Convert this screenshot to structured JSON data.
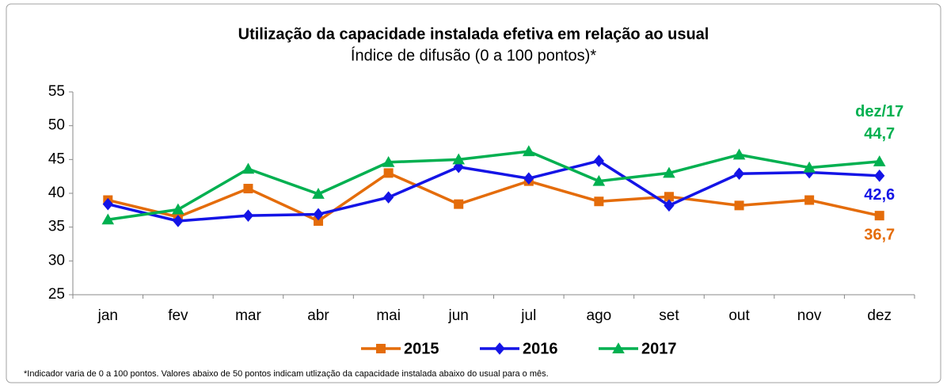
{
  "chart_data": {
    "type": "line",
    "title": "Utilização da capacidade instalada efetiva em relação ao usual",
    "subtitle": "Índice de difusão (0 a 100 pontos)*",
    "footnote": "*Indicador varia de 0 a 100 pontos. Valores abaixo de 50 pontos indicam utlização da capacidade instalada abaixo do usual para o mês.",
    "annotations": [
      "dez/17"
    ],
    "categories": [
      "jan",
      "fev",
      "mar",
      "abr",
      "mai",
      "jun",
      "jul",
      "ago",
      "set",
      "out",
      "nov",
      "dez"
    ],
    "series": [
      {
        "name": "2015",
        "color": "#e46c0a",
        "marker": "square",
        "values": [
          39.0,
          36.5,
          40.7,
          35.9,
          43.0,
          38.4,
          41.8,
          38.8,
          39.5,
          38.2,
          39.0,
          36.7
        ],
        "value_labels": [
          null,
          null,
          null,
          null,
          null,
          null,
          null,
          null,
          null,
          null,
          null,
          "36,7"
        ]
      },
      {
        "name": "2016",
        "color": "#1414e6",
        "marker": "diamond",
        "values": [
          38.4,
          35.9,
          36.7,
          36.9,
          39.4,
          43.9,
          42.2,
          44.8,
          38.2,
          42.9,
          43.1,
          42.6
        ],
        "value_labels": [
          null,
          null,
          null,
          null,
          null,
          null,
          null,
          null,
          null,
          null,
          null,
          "42,6"
        ]
      },
      {
        "name": "2017",
        "color": "#00b050",
        "marker": "triangle",
        "values": [
          36.1,
          37.6,
          43.6,
          39.9,
          44.6,
          45.0,
          46.2,
          41.8,
          43.0,
          45.7,
          43.8,
          44.7
        ],
        "value_labels": [
          null,
          null,
          null,
          null,
          null,
          null,
          null,
          null,
          null,
          null,
          null,
          "44,7"
        ]
      }
    ],
    "ylim": [
      25,
      55
    ],
    "yticks": [
      25,
      30,
      35,
      40,
      45,
      50,
      55
    ],
    "grid": false,
    "legend": "bottom"
  }
}
